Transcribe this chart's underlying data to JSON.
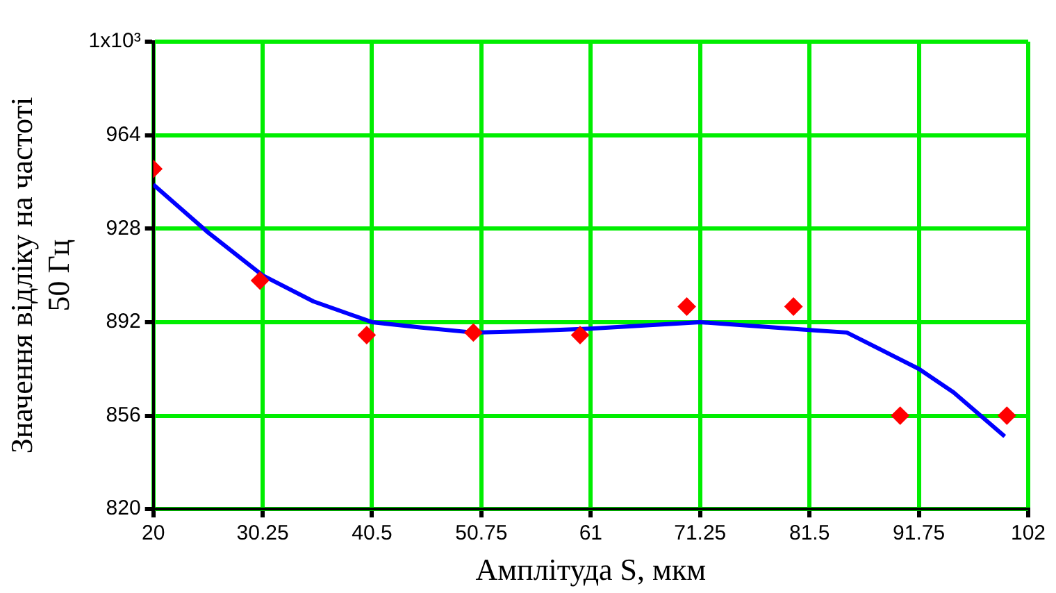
{
  "chart_data": {
    "type": "scatter",
    "xlabel": "Амплітуда S, мкм",
    "ylabel": "Значення відліку на частоті\n50 Гц",
    "series": [
      {
        "color": "#ff0000",
        "marker": "diamond",
        "x": [
          20,
          30,
          40,
          50,
          60,
          70,
          80,
          90,
          100
        ],
        "values": [
          951,
          908,
          887,
          888,
          887,
          898,
          898,
          856,
          856
        ]
      },
      {
        "type": "line",
        "color": "#0000ff",
        "marker": "none",
        "line_style": "solid",
        "x": [
          20,
          25,
          30.25,
          35,
          40.5,
          45,
          50,
          55,
          61,
          71.25,
          81.5,
          85,
          91.75,
          95,
          99.8
        ],
        "values": [
          945,
          927,
          910,
          900,
          892,
          890,
          888,
          888.5,
          889.5,
          892,
          889,
          888,
          874,
          865,
          848
        ]
      }
    ],
    "xlim": [
      20,
      102
    ],
    "xticks": [
      20,
      30.25,
      40.5,
      50.75,
      61,
      71.25,
      81.5,
      91.75,
      102
    ],
    "ylim": [
      820,
      1000
    ],
    "yticks": [
      820,
      856,
      892,
      928,
      964,
      {
        "value": 1000,
        "label": "1x10³"
      }
    ],
    "grid": true,
    "legend": false
  }
}
